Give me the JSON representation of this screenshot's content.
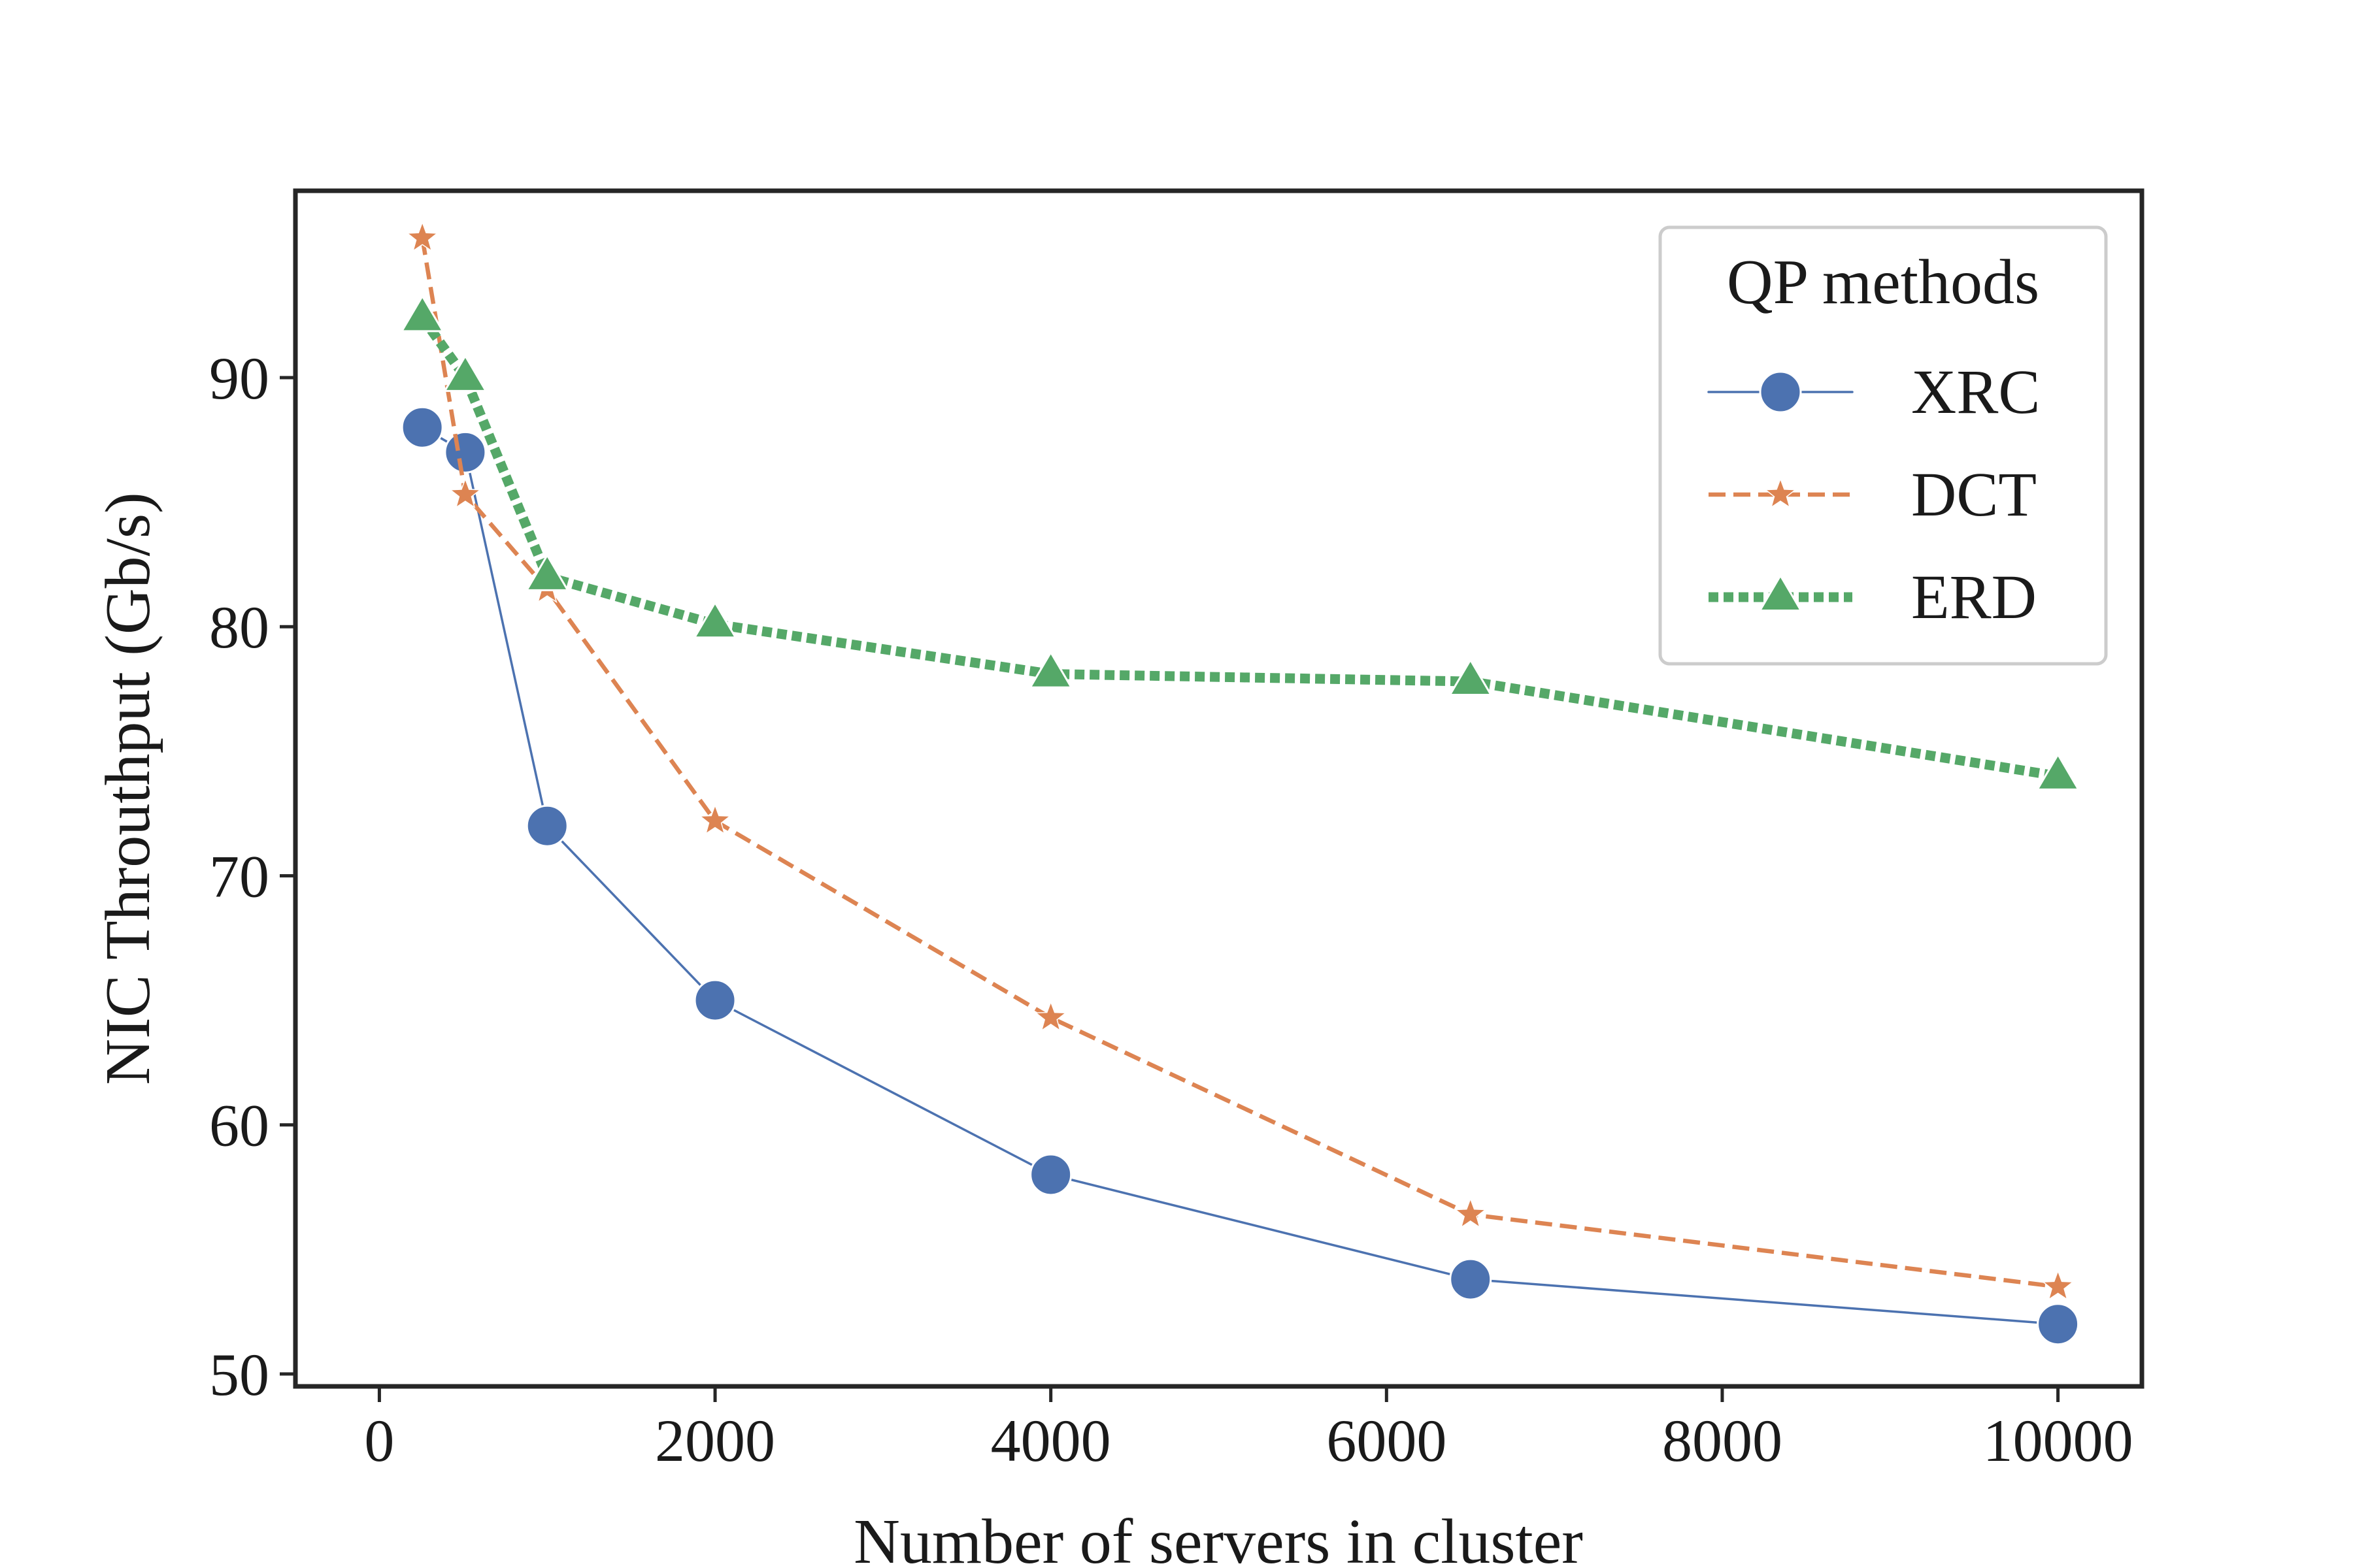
{
  "chart_data": {
    "type": "line",
    "title": "",
    "xlabel": "Number of servers in cluster",
    "ylabel": "NIC Throuthput (Gb/s)",
    "xlim": [
      -500,
      10500
    ],
    "ylim": [
      49.5,
      97.5
    ],
    "xticks": [
      0,
      2000,
      4000,
      6000,
      8000,
      10000
    ],
    "yticks": [
      50,
      60,
      70,
      80,
      90
    ],
    "grid": false,
    "legend": {
      "title": "QP methods",
      "placement": "top-right"
    },
    "series": [
      {
        "name": "XRC",
        "color": "#4c72b0",
        "line_style": "solid",
        "marker": "circle",
        "x": [
          256,
          512,
          1000,
          2000,
          4000,
          6500,
          10000
        ],
        "y": [
          88,
          87,
          72,
          65,
          58,
          53.8,
          52
        ]
      },
      {
        "name": "DCT",
        "color": "#dd8452",
        "line_style": "dashed",
        "marker": "star",
        "x": [
          256,
          512,
          1000,
          2000,
          4000,
          6500,
          10000
        ],
        "y": [
          95.6,
          85.3,
          81.5,
          72.2,
          64.3,
          56.4,
          53.5
        ]
      },
      {
        "name": "ERD",
        "color": "#55a868",
        "line_style": "dotted",
        "marker": "triangle",
        "x": [
          256,
          512,
          1000,
          2000,
          4000,
          6500,
          10000
        ],
        "y": [
          92.4,
          90,
          82,
          80.1,
          78.1,
          77.8,
          74
        ]
      }
    ]
  }
}
